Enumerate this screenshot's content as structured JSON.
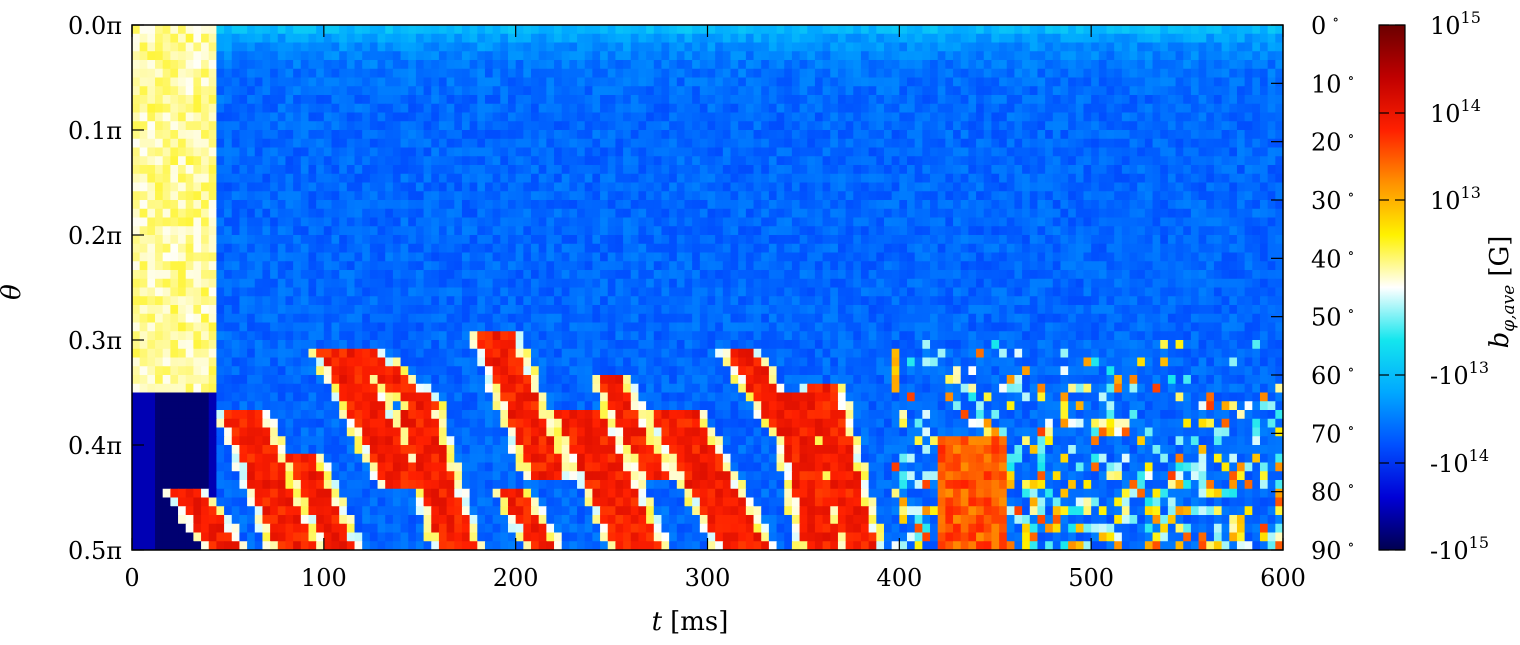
{
  "chart_data": {
    "type": "heatmap",
    "title": "",
    "x_axis": {
      "label_var": "t",
      "label_unit": "[ms]",
      "range": [
        0,
        600
      ],
      "ticks": [
        0,
        100,
        200,
        300,
        400,
        500,
        600
      ],
      "tick_labels": [
        "0",
        "100",
        "200",
        "300",
        "400",
        "500",
        "600"
      ]
    },
    "y_axis_left": {
      "label": "θ",
      "range_pi": [
        0.0,
        0.5
      ],
      "ticks": [
        0.0,
        0.1,
        0.2,
        0.3,
        0.4,
        0.5
      ],
      "tick_labels": [
        "0.0π",
        "0.1π",
        "0.2π",
        "0.3π",
        "0.4π",
        "0.5π"
      ]
    },
    "y_axis_right": {
      "unit": "degrees",
      "range": [
        0,
        90
      ],
      "ticks": [
        0,
        10,
        20,
        30,
        40,
        50,
        60,
        70,
        80,
        90
      ],
      "tick_labels": [
        "0",
        "10",
        "20",
        "30",
        "40",
        "50",
        "60",
        "70",
        "80",
        "90"
      ]
    },
    "colorbar": {
      "label_main": "b",
      "label_sub": "φ,ave",
      "label_unit": "[G]",
      "scale": "symmetric-log",
      "range": [
        "-10^15",
        "10^15"
      ],
      "ticks": [
        {
          "base": "10",
          "exp": "15",
          "sign": ""
        },
        {
          "base": "10",
          "exp": "14",
          "sign": ""
        },
        {
          "base": "10",
          "exp": "13",
          "sign": ""
        },
        {
          "base": "10",
          "exp": "13",
          "sign": "-"
        },
        {
          "base": "10",
          "exp": "14",
          "sign": "-"
        },
        {
          "base": "10",
          "exp": "15",
          "sign": "-"
        }
      ],
      "colors": [
        "#00004f",
        "#0000d6",
        "#0050ff",
        "#00a8ff",
        "#14e6ee",
        "#ffffff",
        "#fff200",
        "#ff9000",
        "#ff2000",
        "#c00000",
        "#6b0000"
      ]
    },
    "description_values": {
      "background_field": "-10^14",
      "features": "positive (red) field patches drifting from ~0.3π toward 0.5π over 50–400 ms; mixed patches 400–600 ms near 0.35π–0.5π"
    },
    "grid": false
  }
}
